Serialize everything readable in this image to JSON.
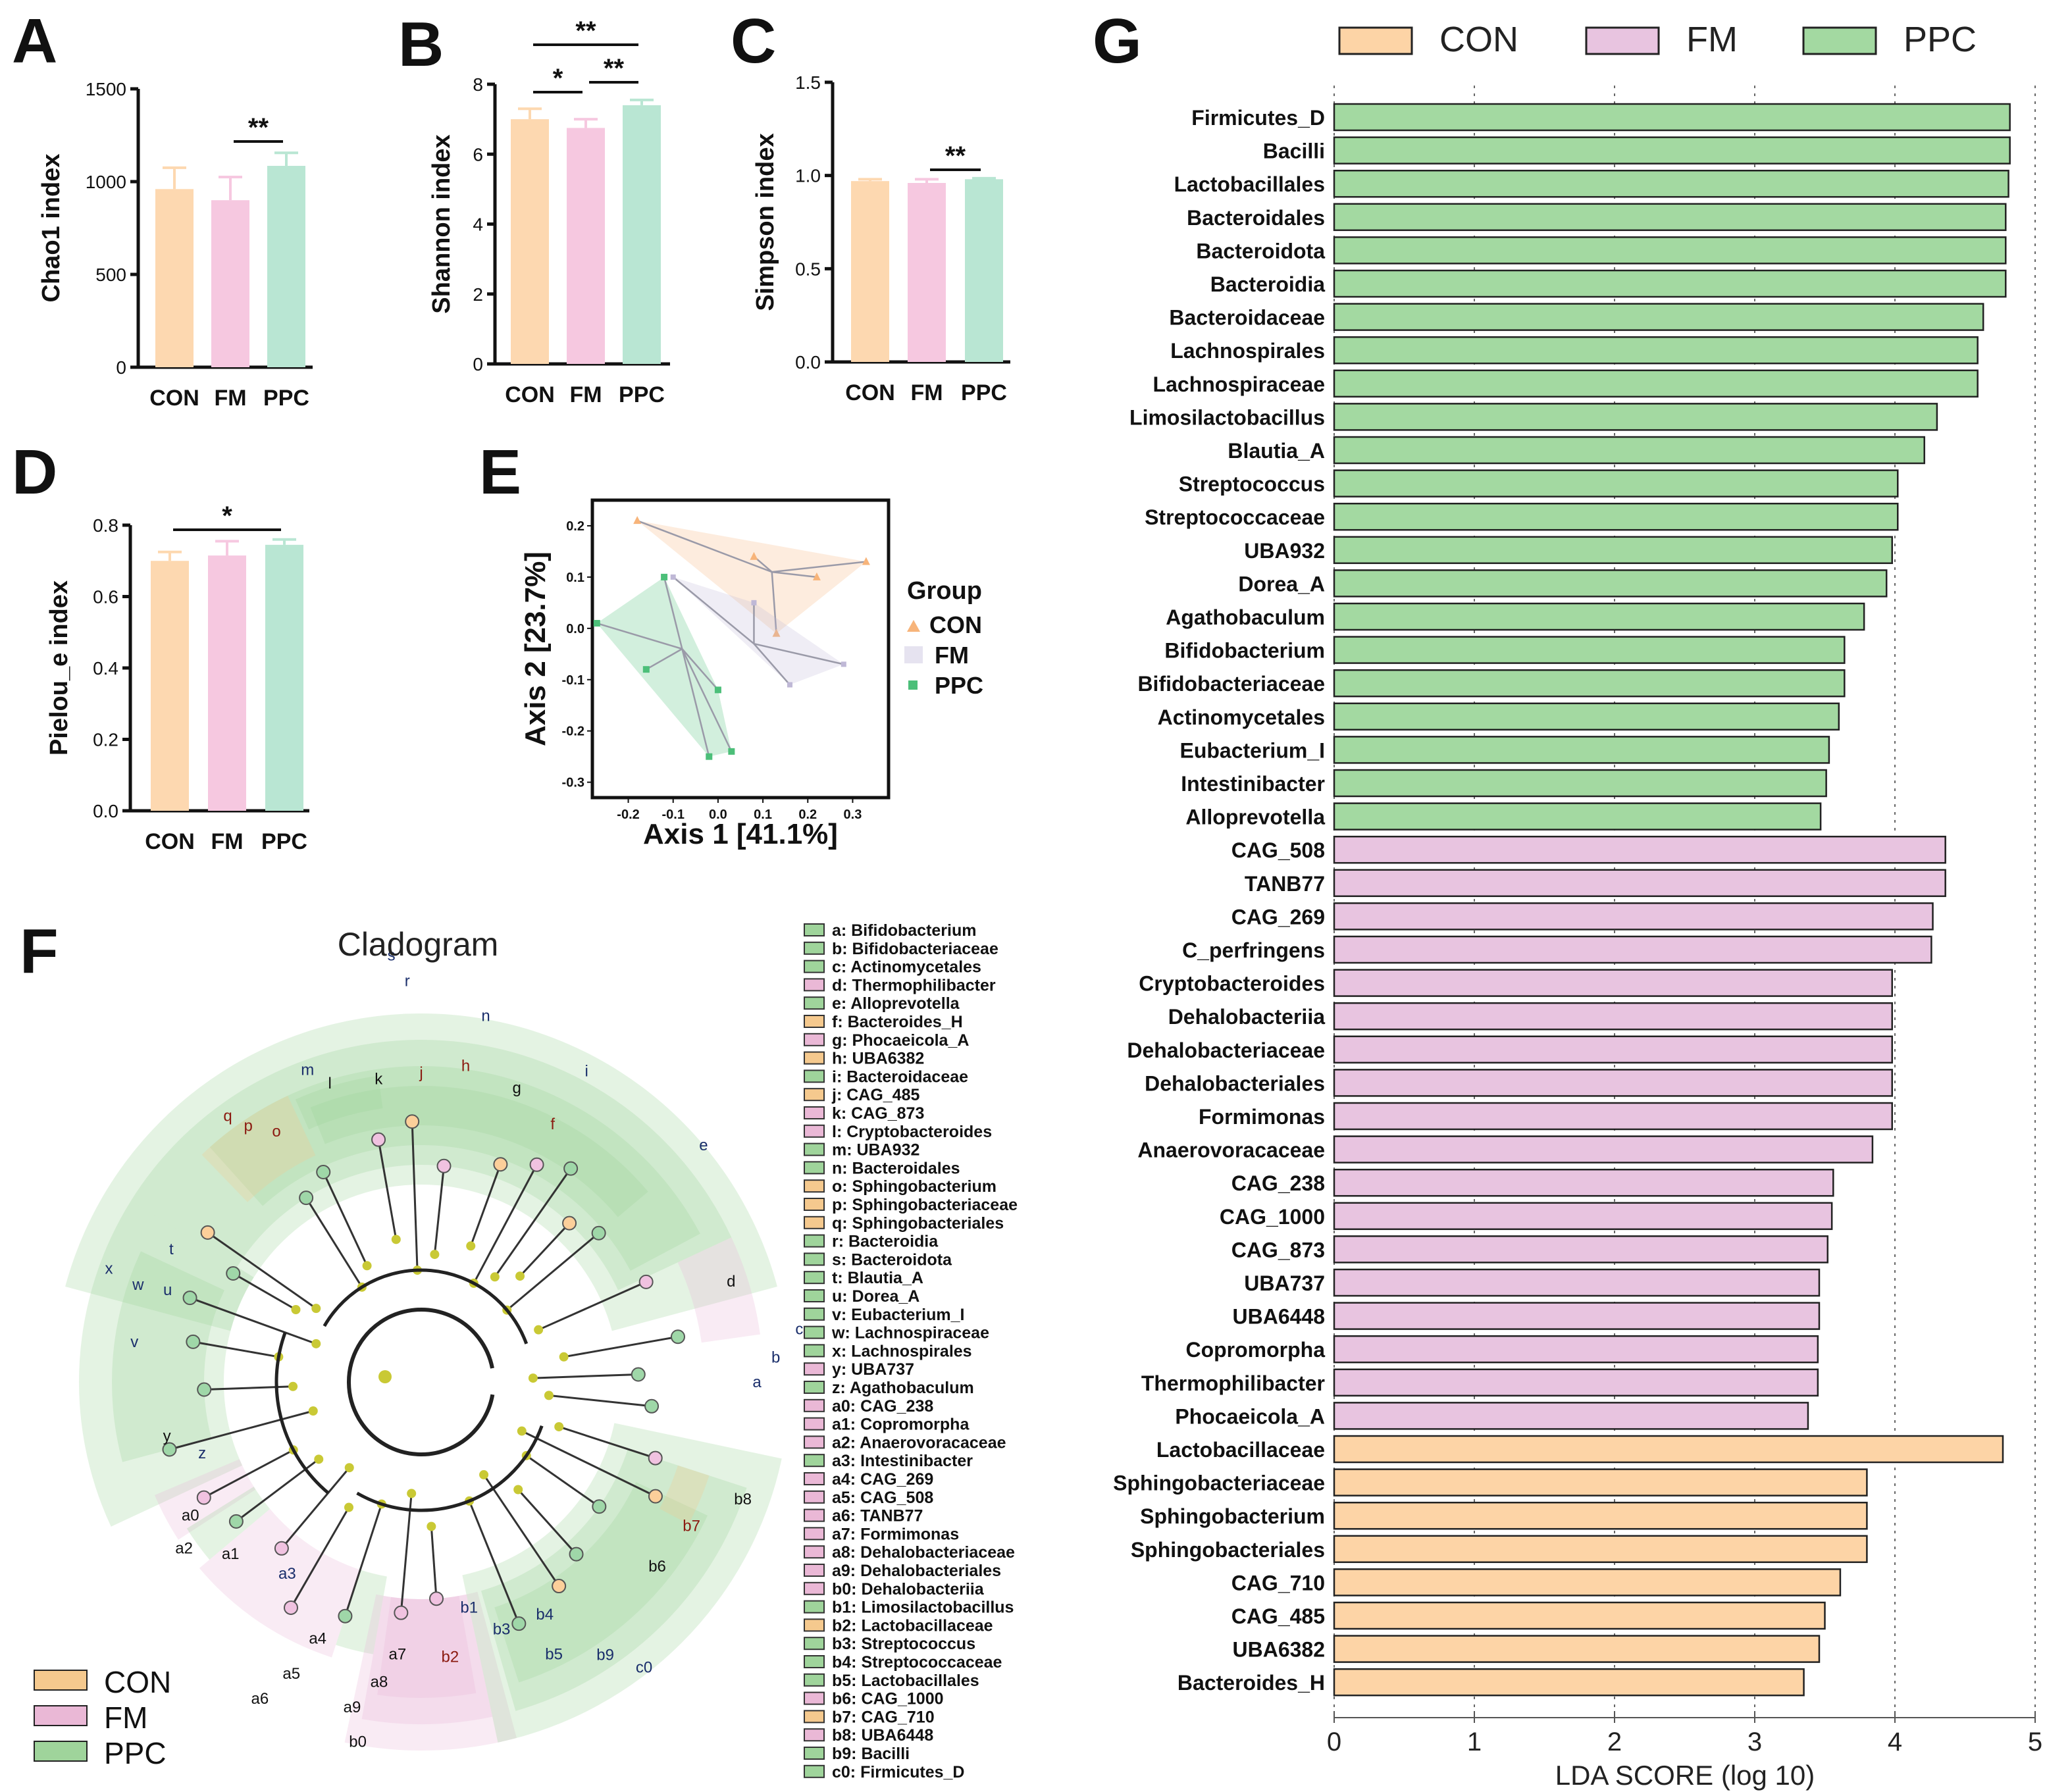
{
  "colors": {
    "CON": "#fcd4a4",
    "FM": "#efc6e0",
    "PPC": "#a3d6a0",
    "CON_bar": "#fdd8b0",
    "FM_bar": "#f6c8e0",
    "PPC_bar": "#b9e6d3"
  },
  "panels": {
    "A": "A",
    "B": "B",
    "C": "C",
    "D": "D",
    "E": "E",
    "F": "F",
    "G": "G"
  },
  "chart_data": [
    {
      "id": "A",
      "type": "bar",
      "categories": [
        "CON",
        "FM",
        "PPC"
      ],
      "values": [
        960,
        900,
        1085
      ],
      "errors": [
        115,
        125,
        70
      ],
      "ylabel": "Chao1 index",
      "ylim": [
        0,
        1500
      ],
      "yticks": [
        0,
        500,
        1000,
        1500
      ],
      "significance": [
        {
          "from": 1,
          "to": 2,
          "label": "**"
        }
      ]
    },
    {
      "id": "B",
      "type": "bar",
      "categories": [
        "CON",
        "FM",
        "PPC"
      ],
      "values": [
        7.0,
        6.75,
        7.4
      ],
      "errors": [
        0.3,
        0.25,
        0.15
      ],
      "ylabel": "Shannon index",
      "ylim": [
        0,
        8
      ],
      "yticks": [
        0,
        2,
        4,
        6,
        8
      ],
      "significance": [
        {
          "from": 0,
          "to": 1,
          "label": "*"
        },
        {
          "from": 1,
          "to": 2,
          "label": "**"
        },
        {
          "from": 0,
          "to": 2,
          "label": "**"
        }
      ]
    },
    {
      "id": "C",
      "type": "bar",
      "categories": [
        "CON",
        "FM",
        "PPC"
      ],
      "values": [
        0.97,
        0.96,
        0.98
      ],
      "errors": [
        0.01,
        0.02,
        0.005
      ],
      "ylabel": "Simpson index",
      "ylim": [
        0,
        1.5
      ],
      "yticks": [
        "0.0",
        "0.5",
        "1.0",
        "1.5"
      ],
      "significance": [
        {
          "from": 1,
          "to": 2,
          "label": "**"
        }
      ]
    },
    {
      "id": "D",
      "type": "bar",
      "categories": [
        "CON",
        "FM",
        "PPC"
      ],
      "values": [
        0.7,
        0.715,
        0.745
      ],
      "errors": [
        0.025,
        0.04,
        0.015
      ],
      "ylabel": "Pielou_e index",
      "ylim": [
        0,
        0.8
      ],
      "yticks": [
        "0.0",
        "0.2",
        "0.4",
        "0.6",
        "0.8"
      ],
      "significance": [
        {
          "from": 0,
          "to": 2,
          "label": "*"
        }
      ]
    },
    {
      "id": "E",
      "type": "scatter",
      "title": "",
      "xlabel": "Axis 1 [41.1%]",
      "ylabel": "Axis 2 [23.7%]",
      "xlim": [
        -0.28,
        0.38
      ],
      "ylim": [
        -0.33,
        0.25
      ],
      "xticks": [
        "-0.2",
        "-0.1",
        "0.0",
        "0.1",
        "0.2",
        "0.3"
      ],
      "yticks": [
        "0.2",
        "0.1",
        "0.0",
        "-0.1",
        "-0.2",
        "-0.3"
      ],
      "legend_title": "Group",
      "series": [
        {
          "name": "CON",
          "color": "#f7b47a",
          "centroid": [
            0.12,
            0.11
          ],
          "hull": [
            [
              -0.18,
              0.21
            ],
            [
              0.33,
              0.13
            ],
            [
              0.13,
              -0.01
            ]
          ],
          "points": [
            [
              -0.18,
              0.21
            ],
            [
              0.08,
              0.14
            ],
            [
              0.33,
              0.13
            ],
            [
              0.22,
              0.1
            ],
            [
              0.13,
              -0.01
            ]
          ]
        },
        {
          "name": "FM",
          "color": "#bfb8d6",
          "centroid": [
            0.08,
            -0.03
          ],
          "hull": [
            [
              -0.1,
              0.1
            ],
            [
              0.08,
              0.05
            ],
            [
              0.28,
              -0.07
            ],
            [
              0.16,
              -0.11
            ]
          ],
          "points": [
            [
              -0.1,
              0.1
            ],
            [
              0.08,
              0.05
            ],
            [
              0.28,
              -0.07
            ],
            [
              0.16,
              -0.11
            ]
          ]
        },
        {
          "name": "PPC",
          "color": "#4cbf79",
          "centroid": [
            -0.08,
            -0.04
          ],
          "hull": [
            [
              -0.27,
              0.01
            ],
            [
              -0.12,
              0.1
            ],
            [
              0.0,
              -0.12
            ],
            [
              0.03,
              -0.24
            ],
            [
              -0.02,
              -0.25
            ]
          ],
          "points": [
            [
              -0.27,
              0.01
            ],
            [
              -0.12,
              0.1
            ],
            [
              -0.16,
              -0.08
            ],
            [
              0.0,
              -0.12
            ],
            [
              0.03,
              -0.24
            ],
            [
              -0.02,
              -0.25
            ]
          ]
        }
      ]
    },
    {
      "id": "F",
      "type": "cladogram",
      "title": "Cladogram",
      "legend": [
        "CON",
        "FM",
        "PPC"
      ],
      "taxa": [
        {
          "k": "a",
          "n": "Bifidobacterium",
          "g": "PPC"
        },
        {
          "k": "b",
          "n": "Bifidobacteriaceae",
          "g": "PPC"
        },
        {
          "k": "c",
          "n": "Actinomycetales",
          "g": "PPC"
        },
        {
          "k": "d",
          "n": "Thermophilibacter",
          "g": "FM"
        },
        {
          "k": "e",
          "n": "Alloprevotella",
          "g": "PPC"
        },
        {
          "k": "f",
          "n": "Bacteroides_H",
          "g": "CON"
        },
        {
          "k": "g",
          "n": "Phocaeicola_A",
          "g": "FM"
        },
        {
          "k": "h",
          "n": "UBA6382",
          "g": "CON"
        },
        {
          "k": "i",
          "n": "Bacteroidaceae",
          "g": "PPC"
        },
        {
          "k": "j",
          "n": "CAG_485",
          "g": "CON"
        },
        {
          "k": "k",
          "n": "CAG_873",
          "g": "FM"
        },
        {
          "k": "l",
          "n": "Cryptobacteroides",
          "g": "FM"
        },
        {
          "k": "m",
          "n": "UBA932",
          "g": "PPC"
        },
        {
          "k": "n",
          "n": "Bacteroidales",
          "g": "PPC"
        },
        {
          "k": "o",
          "n": "Sphingobacterium",
          "g": "CON"
        },
        {
          "k": "p",
          "n": "Sphingobacteriaceae",
          "g": "CON"
        },
        {
          "k": "q",
          "n": "Sphingobacteriales",
          "g": "CON"
        },
        {
          "k": "r",
          "n": "Bacteroidia",
          "g": "PPC"
        },
        {
          "k": "s",
          "n": "Bacteroidota",
          "g": "PPC"
        },
        {
          "k": "t",
          "n": "Blautia_A",
          "g": "PPC"
        },
        {
          "k": "u",
          "n": "Dorea_A",
          "g": "PPC"
        },
        {
          "k": "v",
          "n": "Eubacterium_I",
          "g": "PPC"
        },
        {
          "k": "w",
          "n": "Lachnospiraceae",
          "g": "PPC"
        },
        {
          "k": "x",
          "n": "Lachnospirales",
          "g": "PPC"
        },
        {
          "k": "y",
          "n": "UBA737",
          "g": "FM"
        },
        {
          "k": "z",
          "n": "Agathobaculum",
          "g": "PPC"
        },
        {
          "k": "a0",
          "n": "CAG_238",
          "g": "FM"
        },
        {
          "k": "a1",
          "n": "Copromorpha",
          "g": "FM"
        },
        {
          "k": "a2",
          "n": "Anaerovoracaceae",
          "g": "FM"
        },
        {
          "k": "a3",
          "n": "Intestinibacter",
          "g": "PPC"
        },
        {
          "k": "a4",
          "n": "CAG_269",
          "g": "FM"
        },
        {
          "k": "a5",
          "n": "CAG_508",
          "g": "FM"
        },
        {
          "k": "a6",
          "n": "TANB77",
          "g": "FM"
        },
        {
          "k": "a7",
          "n": "Formimonas",
          "g": "FM"
        },
        {
          "k": "a8",
          "n": "Dehalobacteriaceae",
          "g": "FM"
        },
        {
          "k": "a9",
          "n": "Dehalobacteriales",
          "g": "FM"
        },
        {
          "k": "b0",
          "n": "Dehalobacteriia",
          "g": "FM"
        },
        {
          "k": "b1",
          "n": "Limosilactobacillus",
          "g": "PPC"
        },
        {
          "k": "b2",
          "n": "Lactobacillaceae",
          "g": "CON"
        },
        {
          "k": "b3",
          "n": "Streptococcus",
          "g": "PPC"
        },
        {
          "k": "b4",
          "n": "Streptococcaceae",
          "g": "PPC"
        },
        {
          "k": "b5",
          "n": "Lactobacillales",
          "g": "PPC"
        },
        {
          "k": "b6",
          "n": "CAG_1000",
          "g": "FM"
        },
        {
          "k": "b7",
          "n": "CAG_710",
          "g": "CON"
        },
        {
          "k": "b8",
          "n": "UBA6448",
          "g": "FM"
        },
        {
          "k": "b9",
          "n": "Bacilli",
          "g": "PPC"
        },
        {
          "k": "c0",
          "n": "Firmicutes_D",
          "g": "PPC"
        }
      ]
    },
    {
      "id": "G",
      "type": "bar",
      "orientation": "horizontal",
      "xlabel": "LDA SCORE (log 10)",
      "xlim": [
        0,
        5
      ],
      "xticks": [
        0,
        1,
        2,
        3,
        4,
        5
      ],
      "legend": [
        "CON",
        "FM",
        "PPC"
      ],
      "bars": [
        {
          "n": "Firmicutes_D",
          "v": 4.82,
          "g": "PPC"
        },
        {
          "n": "Bacilli",
          "v": 4.82,
          "g": "PPC"
        },
        {
          "n": "Lactobacillales",
          "v": 4.81,
          "g": "PPC"
        },
        {
          "n": "Bacteroidales",
          "v": 4.79,
          "g": "PPC"
        },
        {
          "n": "Bacteroidota",
          "v": 4.79,
          "g": "PPC"
        },
        {
          "n": "Bacteroidia",
          "v": 4.79,
          "g": "PPC"
        },
        {
          "n": "Bacteroidaceae",
          "v": 4.63,
          "g": "PPC"
        },
        {
          "n": "Lachnospirales",
          "v": 4.59,
          "g": "PPC"
        },
        {
          "n": "Lachnospiraceae",
          "v": 4.59,
          "g": "PPC"
        },
        {
          "n": "Limosilactobacillus",
          "v": 4.3,
          "g": "PPC"
        },
        {
          "n": "Blautia_A",
          "v": 4.21,
          "g": "PPC"
        },
        {
          "n": "Streptococcus",
          "v": 4.02,
          "g": "PPC"
        },
        {
          "n": "Streptococcaceae",
          "v": 4.02,
          "g": "PPC"
        },
        {
          "n": "UBA932",
          "v": 3.98,
          "g": "PPC"
        },
        {
          "n": "Dorea_A",
          "v": 3.94,
          "g": "PPC"
        },
        {
          "n": "Agathobaculum",
          "v": 3.78,
          "g": "PPC"
        },
        {
          "n": "Bifidobacterium",
          "v": 3.64,
          "g": "PPC"
        },
        {
          "n": "Bifidobacteriaceae",
          "v": 3.64,
          "g": "PPC"
        },
        {
          "n": "Actinomycetales",
          "v": 3.6,
          "g": "PPC"
        },
        {
          "n": "Eubacterium_I",
          "v": 3.53,
          "g": "PPC"
        },
        {
          "n": "Intestinibacter",
          "v": 3.51,
          "g": "PPC"
        },
        {
          "n": "Alloprevotella",
          "v": 3.47,
          "g": "PPC"
        },
        {
          "n": "CAG_508",
          "v": 4.36,
          "g": "FM"
        },
        {
          "n": "TANB77",
          "v": 4.36,
          "g": "FM"
        },
        {
          "n": "CAG_269",
          "v": 4.27,
          "g": "FM"
        },
        {
          "n": "C_perfringens",
          "v": 4.26,
          "g": "FM"
        },
        {
          "n": "Cryptobacteroides",
          "v": 3.98,
          "g": "FM"
        },
        {
          "n": "Dehalobacteriia",
          "v": 3.98,
          "g": "FM"
        },
        {
          "n": "Dehalobacteriaceae",
          "v": 3.98,
          "g": "FM"
        },
        {
          "n": "Dehalobacteriales",
          "v": 3.98,
          "g": "FM"
        },
        {
          "n": "Formimonas",
          "v": 3.98,
          "g": "FM"
        },
        {
          "n": "Anaerovoracaceae",
          "v": 3.84,
          "g": "FM"
        },
        {
          "n": "CAG_238",
          "v": 3.56,
          "g": "FM"
        },
        {
          "n": "CAG_1000",
          "v": 3.55,
          "g": "FM"
        },
        {
          "n": "CAG_873",
          "v": 3.52,
          "g": "FM"
        },
        {
          "n": "UBA737",
          "v": 3.46,
          "g": "FM"
        },
        {
          "n": "UBA6448",
          "v": 3.46,
          "g": "FM"
        },
        {
          "n": "Copromorpha",
          "v": 3.45,
          "g": "FM"
        },
        {
          "n": "Thermophilibacter",
          "v": 3.45,
          "g": "FM"
        },
        {
          "n": "Phocaeicola_A",
          "v": 3.38,
          "g": "FM"
        },
        {
          "n": "Lactobacillaceae",
          "v": 4.77,
          "g": "CON"
        },
        {
          "n": "Sphingobacteriaceae",
          "v": 3.8,
          "g": "CON"
        },
        {
          "n": "Sphingobacterium",
          "v": 3.8,
          "g": "CON"
        },
        {
          "n": "Sphingobacteriales",
          "v": 3.8,
          "g": "CON"
        },
        {
          "n": "CAG_710",
          "v": 3.61,
          "g": "CON"
        },
        {
          "n": "CAG_485",
          "v": 3.5,
          "g": "CON"
        },
        {
          "n": "UBA6382",
          "v": 3.46,
          "g": "CON"
        },
        {
          "n": "Bacteroides_H",
          "v": 3.35,
          "g": "CON"
        }
      ]
    }
  ]
}
